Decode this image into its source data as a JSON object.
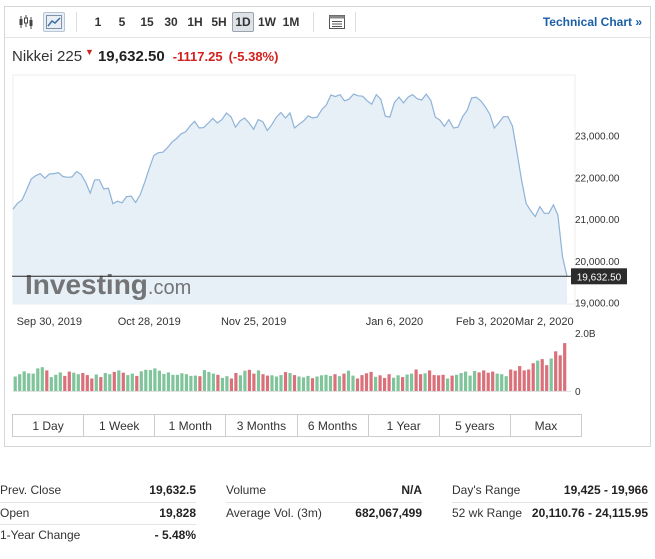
{
  "toolbar": {
    "candles_icon": "candlestick-icon",
    "area_icon": "area-chart-icon",
    "settings_icon": "table-icon",
    "timeframes": [
      "1",
      "5",
      "15",
      "30",
      "1H",
      "5H",
      "1D",
      "1W",
      "1M"
    ],
    "active_timeframe": "1D",
    "technical_chart_label": "Technical Chart »"
  },
  "quote": {
    "name": "Nikkei 225",
    "price": "19,632.50",
    "change": "-1117.25",
    "change_pct": "(-5.38%)"
  },
  "watermark": {
    "brand": "Investing",
    "suffix": ".com"
  },
  "chart_data": {
    "type": "area",
    "x_tick_labels": [
      "Sep 30, 2019",
      "Oct 28, 2019",
      "Nov 25, 2019",
      "Jan 6, 2020",
      "Feb 3, 2020",
      "Mar 2, 2020"
    ],
    "y_tick_labels": [
      "23,000.00",
      "22,000.00",
      "21,000.00",
      "20,000.00",
      "19,000.00"
    ],
    "ylim": [
      18970,
      24400
    ],
    "last_price_label": "19,632.50",
    "last_price": 19632.5,
    "volume_axis_labels": [
      "2.0B",
      "0"
    ],
    "volume_max": 2.0,
    "area_color": "#e7eff7",
    "line_color": "#8fb3d8",
    "up_color": "#7fc49a",
    "down_color": "#d9707a",
    "series": [
      {
        "values": [
          21240,
          21380,
          21460,
          21700,
          21960,
          22040,
          22090,
          21980,
          22080,
          22090,
          22110,
          22020,
          22000,
          22010,
          22140,
          22070,
          21880,
          21620,
          21940,
          21940,
          21720,
          21740,
          21370,
          21430,
          21390,
          21540,
          21550,
          21400,
          21580,
          21880,
          22210,
          22520,
          22590,
          22600,
          22710,
          22840,
          22930,
          23040,
          23090,
          23230,
          23340,
          23180,
          23190,
          23300,
          23410,
          23300,
          23380,
          23540,
          23450,
          23200,
          23350,
          23420,
          23300,
          23150,
          23380,
          23330,
          23120,
          23260,
          23440,
          23550,
          23420,
          23540,
          23180,
          23270,
          23350,
          23470,
          23420,
          23440,
          23620,
          23730,
          23970,
          23930,
          23980,
          23830,
          23870,
          23990,
          23950,
          23940,
          23830,
          23750,
          23980,
          23870,
          23460,
          23440,
          23790,
          23920,
          23780,
          23920,
          23980,
          23880,
          23850,
          23990,
          23840,
          23440,
          23370,
          23220,
          23380,
          23180,
          23200,
          23450,
          23600,
          23900,
          23920,
          23830,
          23690,
          23510,
          23180,
          23310,
          23450,
          23450,
          23220,
          22600,
          21930,
          21380,
          21200,
          21060,
          21300,
          21140,
          21140,
          21340,
          21100,
          20100,
          19632
        ]
      },
      {
        "name": "Volume",
        "values": [
          0.5,
          0.58,
          0.68,
          0.61,
          0.6,
          0.78,
          0.82,
          0.71,
          0.48,
          0.56,
          0.64,
          0.52,
          0.67,
          0.63,
          0.58,
          0.62,
          0.55,
          0.43,
          0.57,
          0.48,
          0.62,
          0.58,
          0.66,
          0.71,
          0.63,
          0.55,
          0.6,
          0.52,
          0.68,
          0.73,
          0.72,
          0.78,
          0.7,
          0.59,
          0.64,
          0.56,
          0.56,
          0.61,
          0.58,
          0.52,
          0.53,
          0.51,
          0.72,
          0.66,
          0.6,
          0.56,
          0.45,
          0.51,
          0.43,
          0.62,
          0.54,
          0.7,
          0.73,
          0.6,
          0.71,
          0.58,
          0.53,
          0.54,
          0.5,
          0.55,
          0.65,
          0.62,
          0.55,
          0.5,
          0.47,
          0.52,
          0.44,
          0.5,
          0.54,
          0.56,
          0.52,
          0.58,
          0.51,
          0.6,
          0.7,
          0.53,
          0.43,
          0.55,
          0.61,
          0.66,
          0.49,
          0.54,
          0.45,
          0.58,
          0.46,
          0.54,
          0.48,
          0.57,
          0.6,
          0.74,
          0.58,
          0.61,
          0.71,
          0.55,
          0.54,
          0.56,
          0.43,
          0.53,
          0.56,
          0.62,
          0.67,
          0.53,
          0.69,
          0.64,
          0.71,
          0.63,
          0.67,
          0.6,
          0.58,
          0.51,
          0.74,
          0.7,
          0.86,
          0.71,
          0.74,
          0.96,
          1.05,
          1.1,
          0.89,
          1.12,
          1.37,
          1.23,
          1.65
        ],
        "up": [
          1,
          1,
          1,
          1,
          1,
          1,
          1,
          0,
          1,
          1,
          1,
          0,
          0,
          1,
          1,
          0,
          0,
          0,
          1,
          0,
          1,
          1,
          0,
          1,
          0,
          1,
          1,
          0,
          1,
          1,
          1,
          1,
          1,
          1,
          1,
          1,
          1,
          1,
          1,
          1,
          1,
          0,
          1,
          1,
          1,
          0,
          1,
          1,
          0,
          0,
          1,
          1,
          0,
          0,
          1,
          0,
          0,
          1,
          1,
          1,
          0,
          1,
          0,
          1,
          1,
          1,
          0,
          1,
          1,
          1,
          1,
          0,
          1,
          0,
          1,
          1,
          0,
          0,
          0,
          0,
          1,
          0,
          0,
          0,
          1,
          1,
          0,
          1,
          1,
          0,
          0,
          1,
          0,
          0,
          0,
          0,
          1,
          0,
          1,
          1,
          1,
          1,
          1,
          0,
          0,
          0,
          0,
          1,
          1,
          1,
          0,
          0,
          0,
          0,
          0,
          0,
          1,
          0,
          0,
          1,
          0,
          0,
          0
        ]
      }
    ]
  },
  "ranges": [
    "1 Day",
    "1 Week",
    "1 Month",
    "3 Months",
    "6 Months",
    "1 Year",
    "5 years",
    "Max"
  ],
  "stats": {
    "col1": [
      {
        "label": "Prev. Close",
        "value": "19,632.5"
      },
      {
        "label": "Open",
        "value": "19,828"
      },
      {
        "label": "1-Year Change",
        "value": "- 5.48%"
      }
    ],
    "col2": [
      {
        "label": "Volume",
        "value": "N/A"
      },
      {
        "label": "Average Vol. (3m)",
        "value": "682,067,499"
      }
    ],
    "col3": [
      {
        "label": "Day's Range",
        "value": "19,425 - 19,966"
      },
      {
        "label": "52 wk Range",
        "value": "20,110.76 - 24,115.95"
      }
    ]
  }
}
